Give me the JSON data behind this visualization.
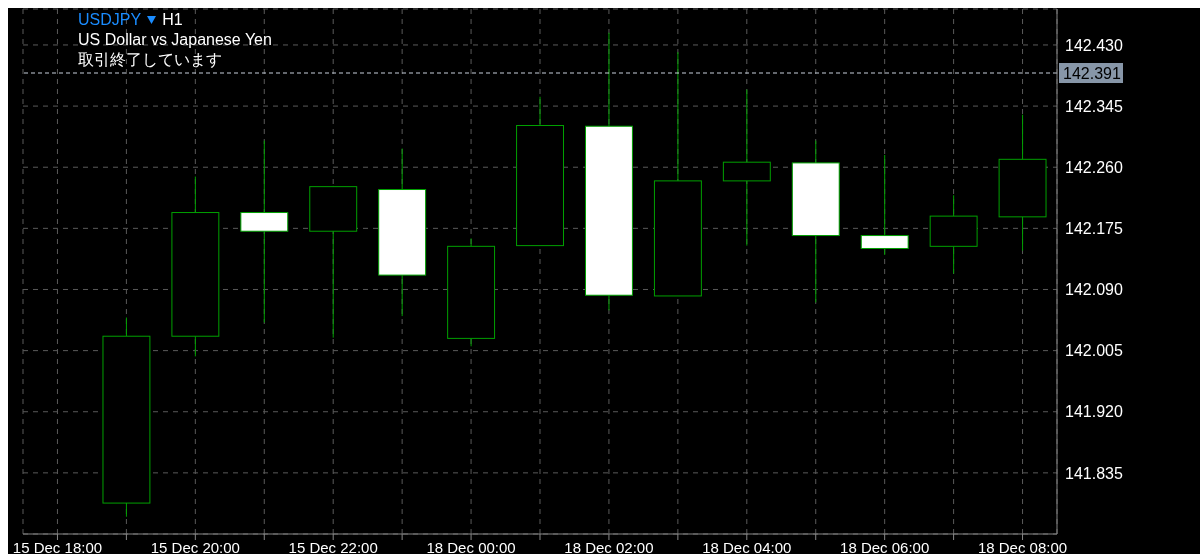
{
  "chart_data": {
    "type": "candlestick",
    "title": "USDJPY",
    "subtitle": "US Dollar vs Japanese Yen",
    "annotations": [
      "H1",
      "取引終了しています"
    ],
    "categories": [
      "15 Dec 18:00",
      null,
      "15 Dec 20:00",
      null,
      "15 Dec 22:00",
      null,
      "18 Dec 00:00",
      null,
      "18 Dec 02:00",
      null,
      "18 Dec 04:00",
      null,
      "18 Dec 06:00",
      null,
      "18 Dec 08:00"
    ],
    "ohlc": [
      null,
      [
        141.793,
        142.051,
        141.774,
        142.025
      ],
      [
        142.025,
        142.247,
        141.997,
        142.197
      ],
      [
        142.197,
        142.297,
        142.044,
        142.171
      ],
      [
        142.171,
        142.234,
        142.023,
        142.233
      ],
      [
        142.229,
        142.286,
        142.053,
        142.11
      ],
      [
        142.022,
        142.161,
        142.011,
        142.15
      ],
      [
        142.151,
        142.358,
        142.151,
        142.318
      ],
      [
        142.317,
        142.447,
        142.061,
        142.082
      ],
      [
        142.081,
        142.42,
        142.081,
        142.241
      ],
      [
        142.241,
        142.368,
        142.151,
        142.267
      ],
      [
        142.266,
        142.297,
        142.072,
        142.165
      ],
      [
        142.165,
        142.277,
        142.138,
        142.147
      ],
      [
        142.15,
        142.221,
        142.112,
        142.192
      ],
      [
        142.191,
        142.333,
        142.144,
        142.271
      ]
    ],
    "color": "#00a000",
    "colors": [
      null,
      "#000000",
      "#000000",
      "#ffffff",
      "#000000",
      "#ffffff",
      "#000000",
      "#000000",
      "#ffffff",
      "#000000",
      "#000000",
      "#ffffff",
      "#ffffff",
      "#000000",
      "#000000"
    ],
    "ylim": [
      141.75,
      142.48
    ],
    "yticks": [
      141.835,
      {
        "value": 141.92,
        "label": "141.920"
      },
      142.005,
      {
        "value": 142.09,
        "label": "142.090"
      },
      142.175,
      {
        "value": 142.26,
        "label": "142.260"
      },
      142.345,
      {
        "value": 142.43,
        "label": "142.430"
      }
    ],
    "ref_lines": [
      {
        "axis": "y",
        "value": 142.391,
        "label": "142.391",
        "color": "#c8d0dc",
        "line_style": "dashed"
      }
    ],
    "grid": true
  }
}
